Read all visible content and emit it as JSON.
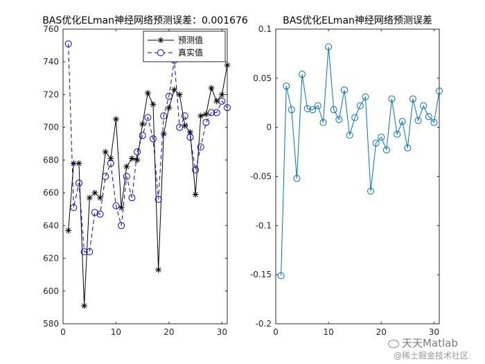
{
  "chart_data": [
    {
      "type": "line",
      "title": "BAS优化ELman神经网络预测误差：0.001676",
      "xlabel": "",
      "ylabel": "",
      "xlim": [
        0,
        31
      ],
      "ylim": [
        580,
        760
      ],
      "xticks": [
        0,
        10,
        20,
        30
      ],
      "yticks": [
        580,
        600,
        620,
        640,
        660,
        680,
        700,
        720,
        740,
        760
      ],
      "legend_position": "top-right",
      "x": [
        1,
        2,
        3,
        4,
        5,
        6,
        7,
        8,
        9,
        10,
        11,
        12,
        13,
        14,
        15,
        16,
        17,
        18,
        19,
        20,
        21,
        22,
        23,
        24,
        25,
        26,
        27,
        28,
        29,
        30,
        31
      ],
      "series": [
        {
          "name": "预测值",
          "color": "#000000",
          "marker": "asterisk",
          "line": "solid",
          "values": [
            637,
            678,
            678,
            591,
            657,
            660,
            657,
            685,
            681,
            705,
            651,
            676,
            681,
            680,
            702,
            721,
            714,
            613,
            696,
            712,
            723,
            720,
            701,
            697,
            659,
            707,
            708,
            724,
            716,
            720,
            738
          ]
        },
        {
          "name": "真实值",
          "color": "#0000cc",
          "marker": "circle",
          "line": "dashed",
          "values": [
            751,
            651,
            666,
            624,
            624,
            648,
            647,
            670,
            678,
            652,
            640,
            670,
            657,
            685,
            695,
            706,
            693,
            656,
            707,
            719,
            741,
            700,
            707,
            694,
            674,
            688,
            703,
            709,
            709,
            716,
            712
          ]
        }
      ]
    },
    {
      "type": "line",
      "title": "BAS优化ELman神经网络预测误差",
      "xlabel": "",
      "ylabel": "",
      "xlim": [
        0,
        31
      ],
      "ylim": [
        -0.2,
        0.1
      ],
      "xticks": [
        0,
        10,
        20,
        30
      ],
      "yticks": [
        -0.2,
        -0.15,
        -0.1,
        -0.05,
        0,
        0.05,
        0.1
      ],
      "ytick_labels": [
        "-0.2",
        "-0.15",
        "-0.1",
        "-0.05",
        "0",
        "0.05",
        "0.1"
      ],
      "x": [
        1,
        2,
        3,
        4,
        5,
        6,
        7,
        8,
        9,
        10,
        11,
        12,
        13,
        14,
        15,
        16,
        17,
        18,
        19,
        20,
        21,
        22,
        23,
        24,
        25,
        26,
        27,
        28,
        29,
        30,
        31
      ],
      "series": [
        {
          "color": "#0072bd",
          "marker": "circle",
          "line": "solid",
          "values": [
            -0.151,
            0.042,
            0.018,
            -0.052,
            0.054,
            0.019,
            0.018,
            0.022,
            0.005,
            0.082,
            0.018,
            0.008,
            0.038,
            -0.008,
            0.01,
            0.022,
            0.031,
            -0.065,
            -0.016,
            -0.01,
            -0.023,
            0.029,
            -0.007,
            0.006,
            -0.021,
            0.029,
            0.007,
            0.022,
            0.011,
            0.005,
            0.037
          ]
        }
      ]
    }
  ],
  "watermark": {
    "line1": "天天Matlab",
    "line2": "@稀土掘金技术社区"
  }
}
